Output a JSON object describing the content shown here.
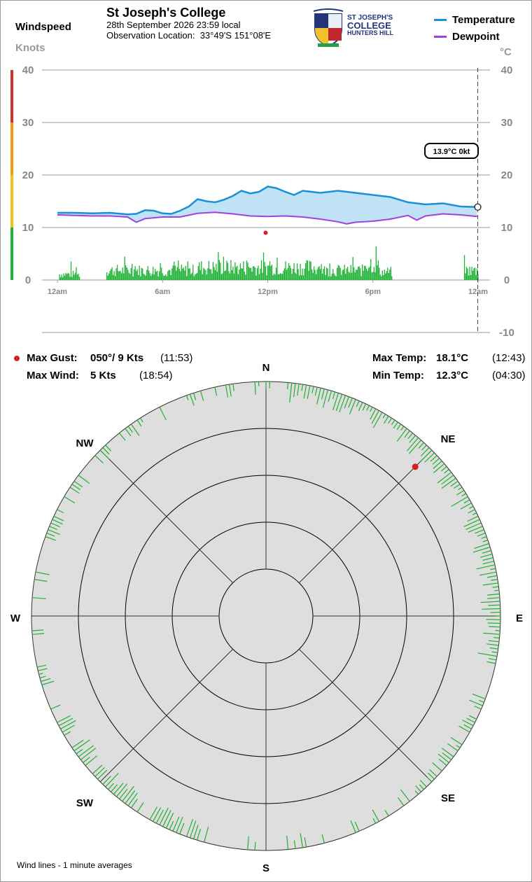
{
  "header": {
    "site": "St Joseph's College",
    "datetime": "28th September 2026  23:59 local",
    "location_label": "Observation Location:",
    "location": "33°49'S 151°08'E",
    "logo_lines": [
      "ST JOSEPH'S",
      "COLLEGE",
      "HUNTERS HILL"
    ]
  },
  "windspeed_label": "Windspeed",
  "knots_label": "Knots",
  "celsius_label": "°C",
  "legend": [
    {
      "name": "Temperature",
      "color": "#1a90d8"
    },
    {
      "name": "Dewpoint",
      "color": "#a23fe0"
    }
  ],
  "current_readout": "13.9°C  0kt",
  "stats": {
    "max_gust_label": "Max Gust:",
    "max_gust_value": "050°/  9 Kts",
    "max_gust_time": "(11:53)",
    "max_wind_label": "Max Wind:",
    "max_wind_value": "5 Kts",
    "max_wind_time": "(18:54)",
    "max_temp_label": "Max Temp:",
    "max_temp_value": "18.1°C",
    "max_temp_time": "(12:43)",
    "min_temp_label": "Min Temp:",
    "min_temp_value": "12.3°C",
    "min_temp_time": "(04:30)"
  },
  "compass": {
    "labels": [
      "N",
      "NE",
      "E",
      "SE",
      "S",
      "SW",
      "W",
      "NW"
    ],
    "gust_direction_deg": 45,
    "gust_speed_kts": 9,
    "ring_step_kts": 2
  },
  "footnote": "Wind lines - 1 minute averages",
  "chart_data": {
    "type": "line",
    "x_ticks": [
      "12am",
      "6am",
      "12pm",
      "6pm",
      "12am"
    ],
    "x_tick_hours": [
      0,
      6,
      12,
      18,
      24
    ],
    "xlim": [
      0,
      24
    ],
    "y_left": {
      "label": "Knots",
      "lim": [
        0,
        40
      ],
      "ticks": [
        0,
        10,
        20,
        30,
        40
      ]
    },
    "y_right": {
      "label": "°C",
      "lim": [
        -10,
        40
      ],
      "ticks": [
        -10,
        0,
        10,
        20,
        30,
        40
      ]
    },
    "speed_bands": [
      {
        "from": 0,
        "to": 10,
        "color": "#1fb336"
      },
      {
        "from": 10,
        "to": 20,
        "color": "#f1c40f"
      },
      {
        "from": 20,
        "to": 30,
        "color": "#f39c12"
      },
      {
        "from": 30,
        "to": 40,
        "color": "#d32f2f"
      }
    ],
    "temperature": {
      "name": "Temperature",
      "points": [
        [
          0,
          12.8
        ],
        [
          1,
          12.8
        ],
        [
          2,
          12.7
        ],
        [
          3,
          12.8
        ],
        [
          4,
          12.5
        ],
        [
          4.5,
          12.6
        ],
        [
          5,
          13.3
        ],
        [
          5.5,
          13.2
        ],
        [
          6,
          12.7
        ],
        [
          6.5,
          12.6
        ],
        [
          7,
          13.2
        ],
        [
          7.5,
          14.0
        ],
        [
          8,
          15.4
        ],
        [
          8.5,
          15.0
        ],
        [
          9,
          14.8
        ],
        [
          9.5,
          15.3
        ],
        [
          10,
          16.0
        ],
        [
          10.5,
          17.0
        ],
        [
          11,
          16.5
        ],
        [
          11.5,
          16.8
        ],
        [
          12,
          17.8
        ],
        [
          12.5,
          17.5
        ],
        [
          13,
          16.8
        ],
        [
          13.5,
          16.2
        ],
        [
          14,
          17.0
        ],
        [
          14.5,
          16.8
        ],
        [
          15,
          16.6
        ],
        [
          16,
          17.0
        ],
        [
          17,
          16.6
        ],
        [
          18,
          16.2
        ],
        [
          19,
          15.8
        ],
        [
          20,
          14.8
        ],
        [
          21,
          14.4
        ],
        [
          22,
          14.6
        ],
        [
          23,
          14.0
        ],
        [
          23.95,
          13.9
        ]
      ]
    },
    "dewpoint": {
      "name": "Dewpoint",
      "points": [
        [
          0,
          12.4
        ],
        [
          1,
          12.3
        ],
        [
          2,
          12.2
        ],
        [
          3,
          12.2
        ],
        [
          4,
          12.0
        ],
        [
          4.5,
          11.0
        ],
        [
          5,
          11.7
        ],
        [
          6,
          12.0
        ],
        [
          7,
          12.0
        ],
        [
          8,
          12.7
        ],
        [
          9,
          12.9
        ],
        [
          10,
          12.6
        ],
        [
          11,
          12.2
        ],
        [
          12,
          12.1
        ],
        [
          13,
          12.2
        ],
        [
          14,
          12.0
        ],
        [
          15,
          11.6
        ],
        [
          16,
          11.1
        ],
        [
          16.5,
          10.7
        ],
        [
          17,
          11.0
        ],
        [
          18,
          11.2
        ],
        [
          19,
          11.6
        ],
        [
          20,
          12.3
        ],
        [
          20.5,
          11.4
        ],
        [
          21,
          12.2
        ],
        [
          22,
          12.6
        ],
        [
          23,
          12.4
        ],
        [
          23.95,
          12.1
        ]
      ]
    },
    "max_gust": {
      "hour": 11.88,
      "kts": 9
    },
    "current": {
      "hour": 23.98,
      "temp_c": 13.9,
      "wind_kts": 0
    }
  }
}
